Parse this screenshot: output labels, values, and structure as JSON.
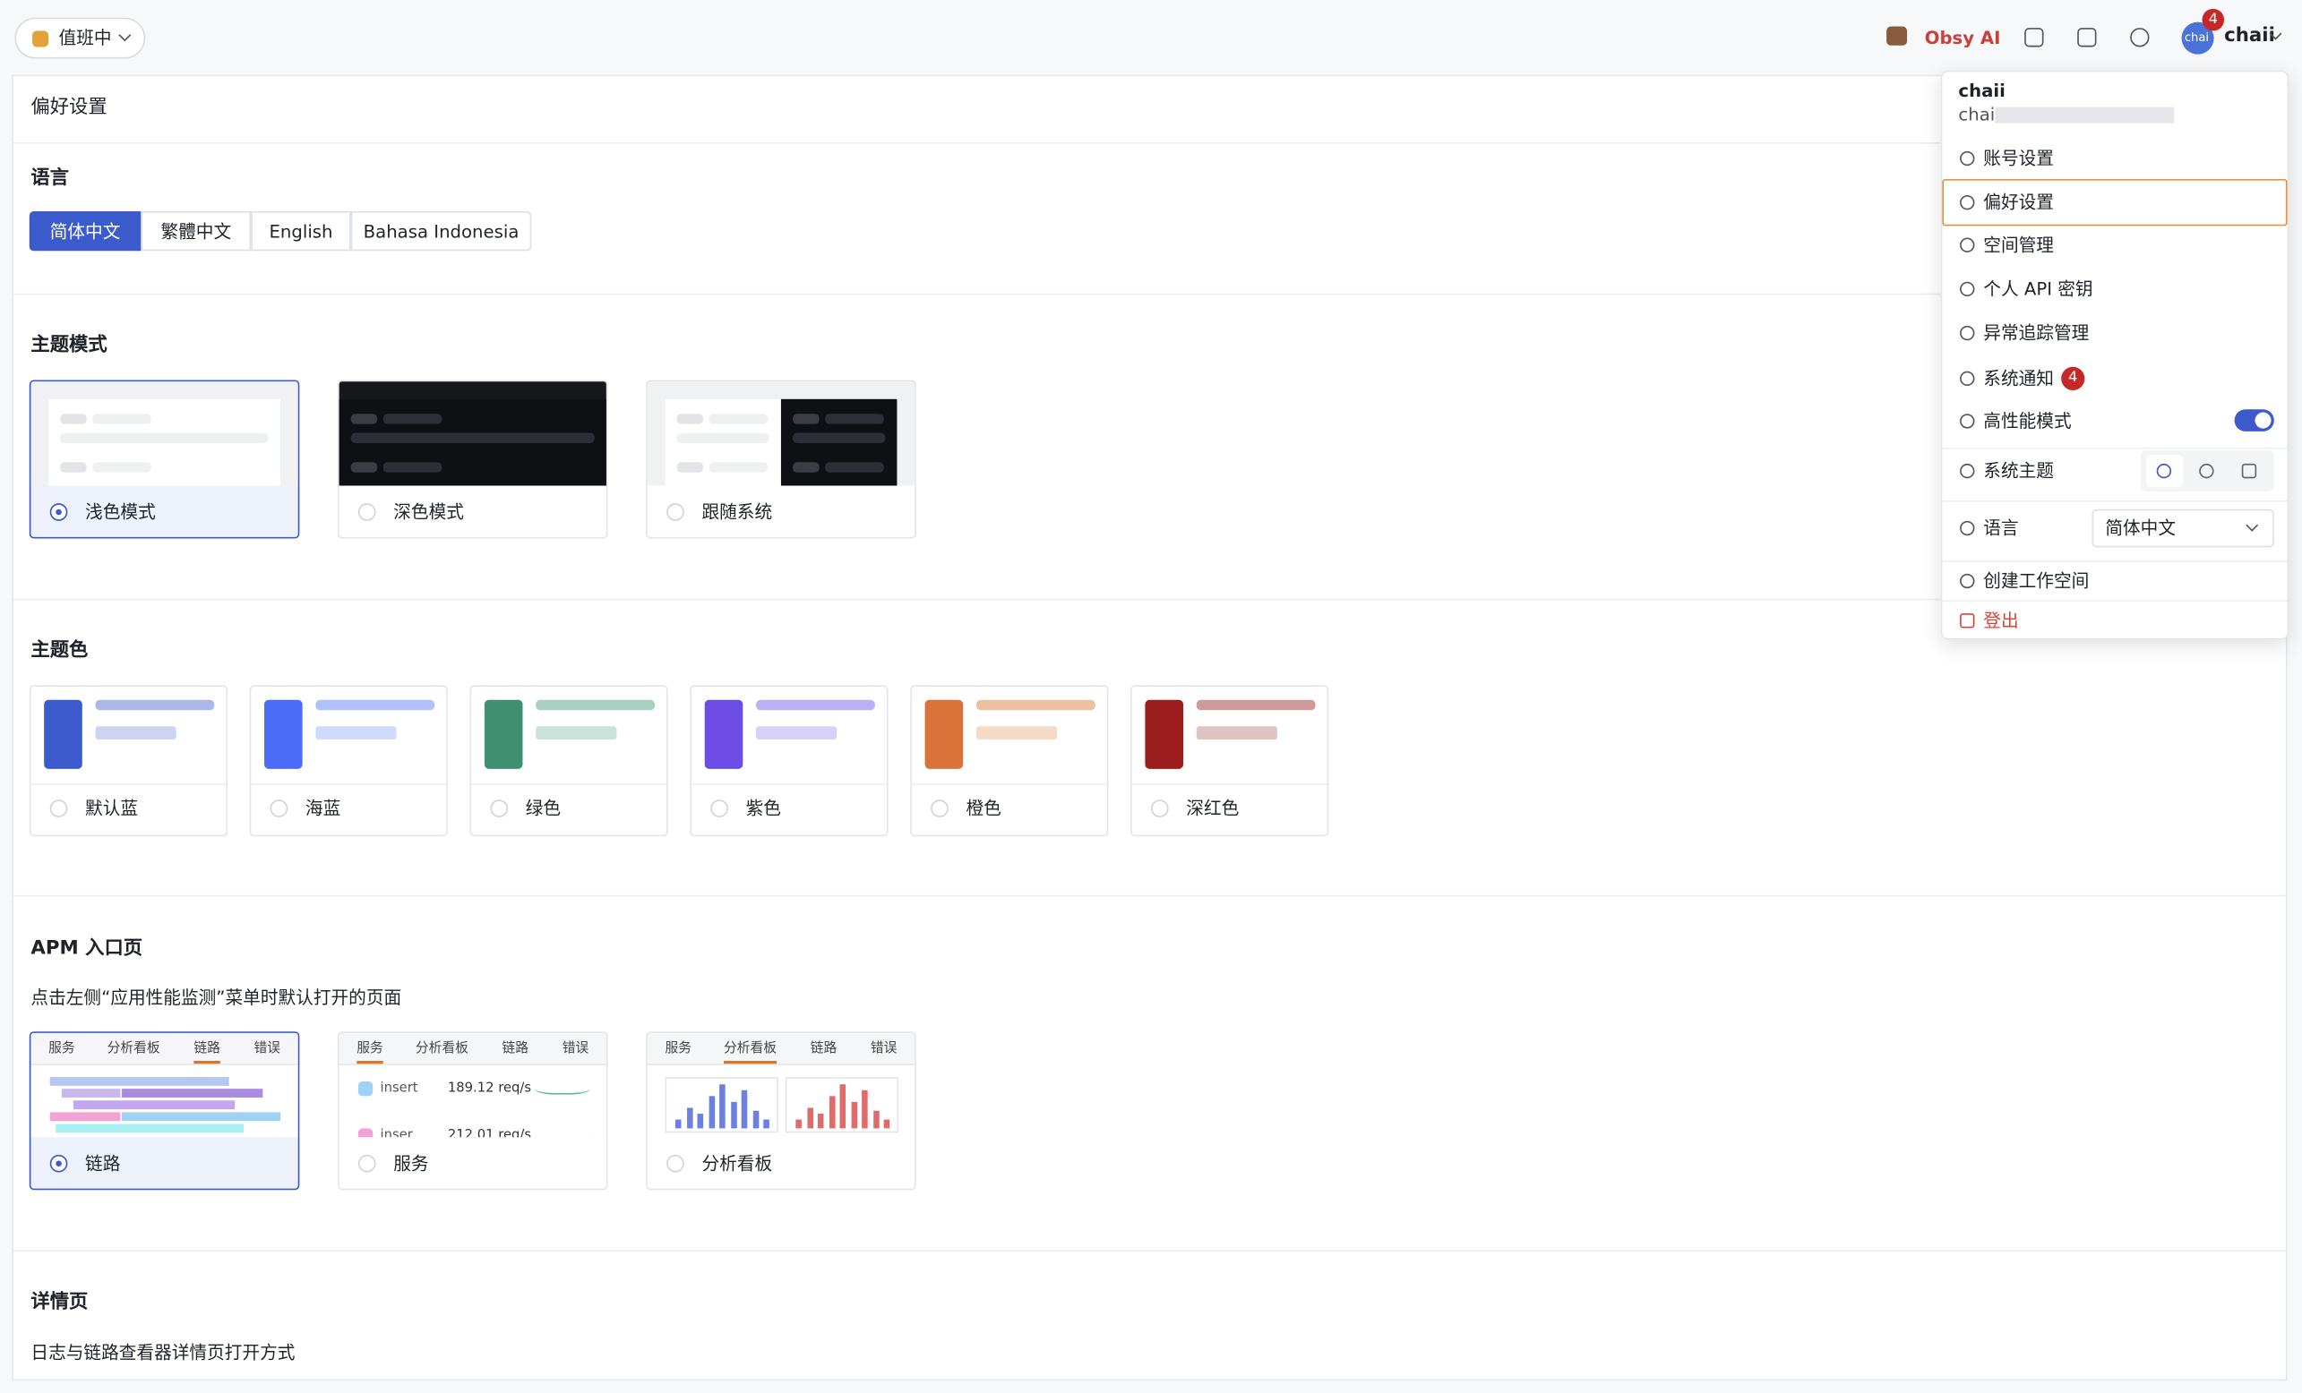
{
  "header": {
    "status": "值班中",
    "ai": "Obsy AI",
    "avatar": "chai",
    "badge": "4",
    "user": "chaii"
  },
  "page": {
    "title": "偏好设置",
    "language": {
      "title": "语言",
      "options": [
        "简体中文",
        "繁體中文",
        "English",
        "Bahasa Indonesia"
      ]
    },
    "theme_mode": {
      "title": "主题模式",
      "options": [
        "浅色模式",
        "深色模式",
        "跟随系统"
      ]
    },
    "theme_color": {
      "title": "主题色",
      "options": [
        "默认蓝",
        "海蓝",
        "绿色",
        "紫色",
        "橙色",
        "深红色"
      ]
    },
    "apm": {
      "title": "APM 入口页",
      "desc": "点击左侧“应用性能监测”菜单时默认打开的页面",
      "options": [
        "链路",
        "服务",
        "分析看板"
      ],
      "tabs": [
        "服务",
        "分析看板",
        "链路",
        "错误"
      ],
      "rows": [
        {
          "name": "insert",
          "rate": "189.12 req/s"
        },
        {
          "name": "inser",
          "rate": "212.01 req/s"
        }
      ]
    },
    "detail": {
      "title": "详情页",
      "desc": "日志与链路查看器详情页打开方式"
    }
  },
  "menu": {
    "name": "chaii",
    "email": "chai:",
    "items": [
      "账号设置",
      "偏好设置",
      "空间管理",
      "个人 API 密钥",
      "异常追踪管理",
      "系统通知",
      "高性能模式",
      "系统主题",
      "语言"
    ],
    "notify_badge": "4",
    "language_value": "简体中文",
    "create": "创建工作空间",
    "logout": "登出"
  }
}
